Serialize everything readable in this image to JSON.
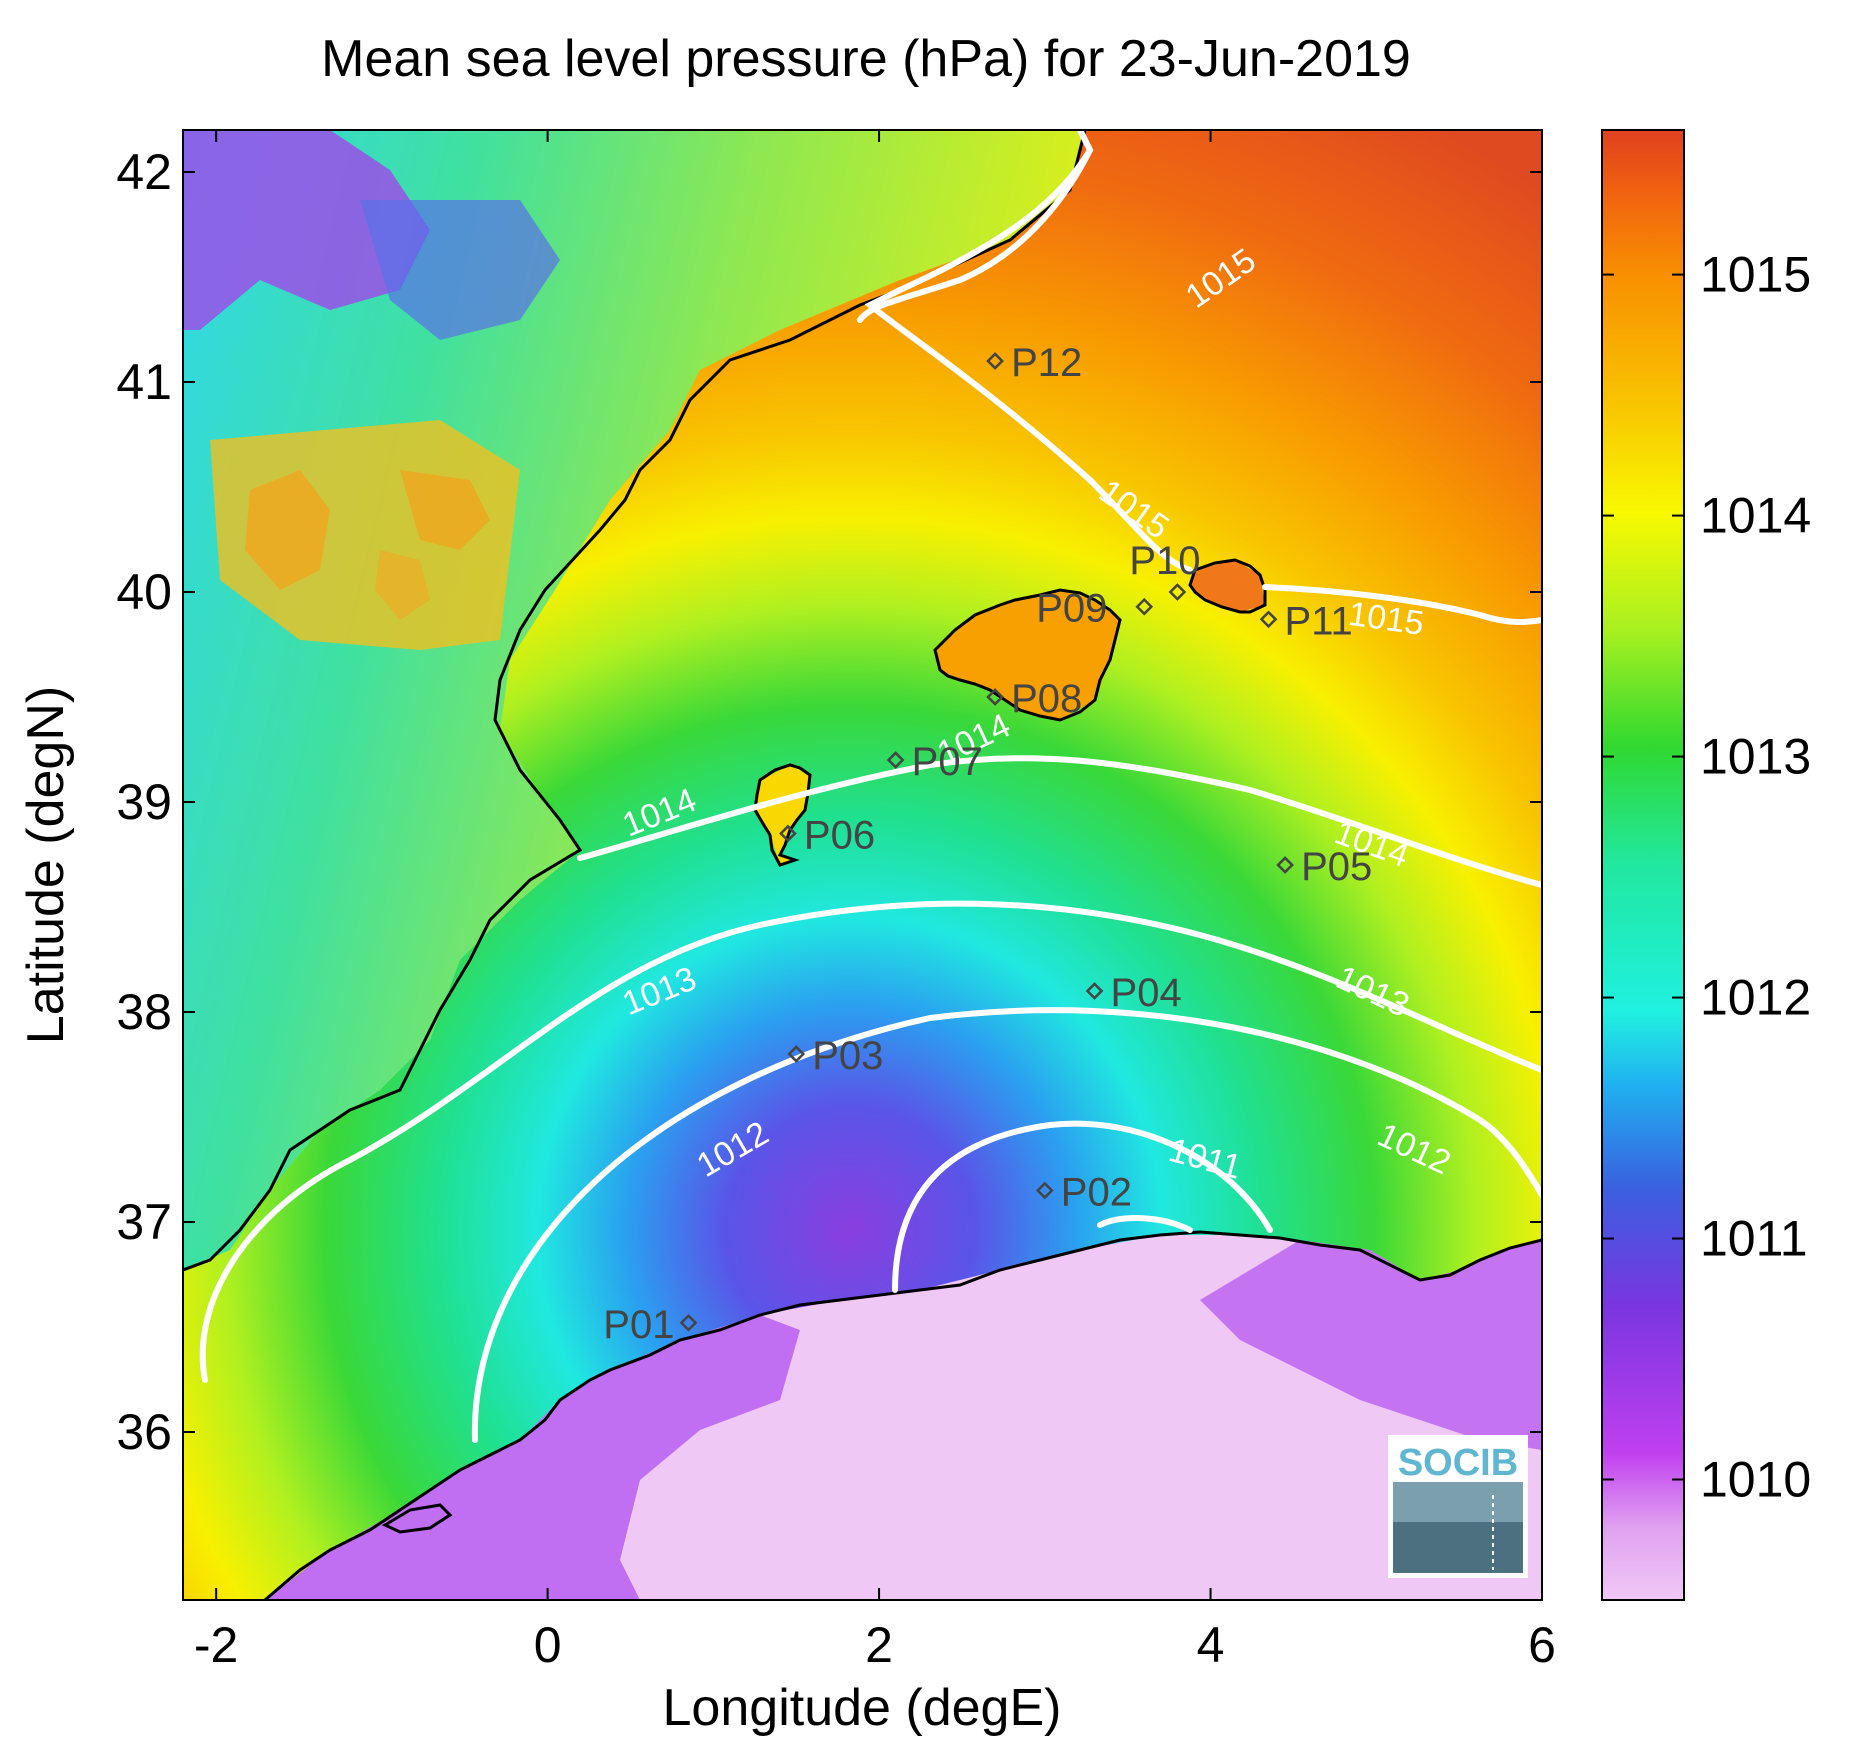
{
  "title": "Mean sea level pressure (hPa) for 23-Jun-2019",
  "x_axis": {
    "label": "Longitude (degE)",
    "range": [
      -2.2,
      6.0
    ],
    "ticks": [
      -2,
      0,
      2,
      4,
      6
    ],
    "tick_labels": [
      "-2",
      "0",
      "2",
      "4",
      "6"
    ]
  },
  "y_axis": {
    "label": "Latitude (degN)",
    "range": [
      35.2,
      42.2
    ],
    "ticks": [
      36,
      37,
      38,
      39,
      40,
      41,
      42
    ],
    "tick_labels": [
      "36",
      "37",
      "38",
      "39",
      "40",
      "41",
      "42"
    ]
  },
  "colorbar": {
    "range": [
      1009.5,
      1015.6
    ],
    "ticks": [
      1010,
      1011,
      1012,
      1013,
      1014,
      1015
    ],
    "tick_labels": [
      "1010",
      "1011",
      "1012",
      "1013",
      "1014",
      "1015"
    ],
    "colors": [
      "#f0c8f5",
      "#c040f0",
      "#7a35e0",
      "#3a60e0",
      "#20b0f0",
      "#20f0e0",
      "#20e8a0",
      "#30d830",
      "#a8f020",
      "#f8f800",
      "#f8c000",
      "#f89000",
      "#f06010",
      "#e04020"
    ]
  },
  "contour_labels": [
    "1011",
    "1012",
    "1013",
    "1014",
    "1015"
  ],
  "stations": [
    {
      "id": "P01",
      "lon": 0.85,
      "lat": 36.52
    },
    {
      "id": "P02",
      "lon": 3.0,
      "lat": 37.15
    },
    {
      "id": "P03",
      "lon": 1.5,
      "lat": 37.8
    },
    {
      "id": "P04",
      "lon": 3.3,
      "lat": 38.1
    },
    {
      "id": "P05",
      "lon": 4.45,
      "lat": 38.7
    },
    {
      "id": "P06",
      "lon": 1.45,
      "lat": 38.85
    },
    {
      "id": "P07",
      "lon": 2.1,
      "lat": 39.2
    },
    {
      "id": "P08",
      "lon": 2.7,
      "lat": 39.5
    },
    {
      "id": "P09",
      "lon": 3.6,
      "lat": 39.93
    },
    {
      "id": "P10",
      "lon": 3.8,
      "lat": 40.0
    },
    {
      "id": "P11",
      "lon": 4.35,
      "lat": 39.87
    },
    {
      "id": "P12",
      "lon": 2.7,
      "lat": 41.1
    }
  ],
  "logo": {
    "text": "SOCIB"
  }
}
